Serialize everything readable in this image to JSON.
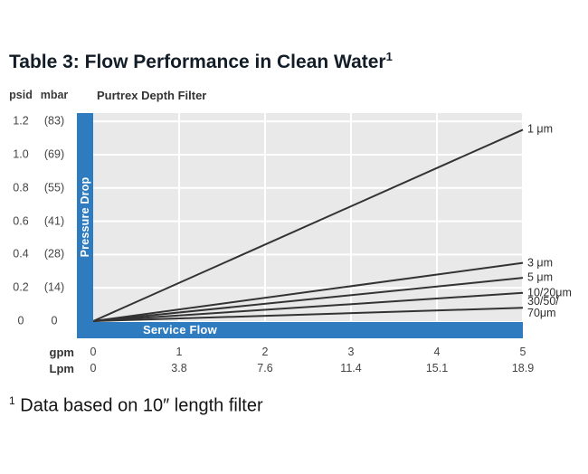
{
  "page": {
    "title": "Table 3: Flow Performance in Clean Water",
    "title_superscript": "1",
    "footnote_superscript": "1",
    "footnote": "Data based on 10″ length filter"
  },
  "chart": {
    "colors": {
      "accent_blue": "#2e7bbf",
      "plot_bg": "#e9e9e9",
      "line": "#333333"
    }
  },
  "chart_data": {
    "type": "line",
    "title": "Purtrex Depth Filter",
    "ylabel": "Pressure Drop",
    "xlabel": "Service Flow",
    "y_unit_primary": "psid",
    "y_unit_secondary": "mbar",
    "x_unit_primary": "gpm",
    "x_unit_secondary": "Lpm",
    "xlim": [
      0,
      5
    ],
    "ylim": [
      0,
      1.25
    ],
    "grid": true,
    "legend_position": "right",
    "x_ticks_gpm": [
      0,
      1,
      2,
      3,
      4,
      5
    ],
    "x_ticks_lpm": [
      "0",
      "3.8",
      "7.6",
      "11.4",
      "15.1",
      "18.9"
    ],
    "y_ticks_psid": [
      "1.2",
      "1.0",
      "0.8",
      "0.6",
      "0.4",
      "0.2",
      "0"
    ],
    "y_ticks_mbar": [
      "(83)",
      "(69)",
      "(55)",
      "(41)",
      "(28)",
      "(14)",
      "0"
    ],
    "series": [
      {
        "name": "1 μm",
        "label_lines": [
          "1 μm"
        ],
        "x": [
          0,
          5
        ],
        "y": [
          0,
          1.15
        ]
      },
      {
        "name": "3 μm",
        "label_lines": [
          "3 μm"
        ],
        "x": [
          0,
          5
        ],
        "y": [
          0,
          0.35
        ]
      },
      {
        "name": "5 μm",
        "label_lines": [
          "5 μm"
        ],
        "x": [
          0,
          5
        ],
        "y": [
          0,
          0.26
        ]
      },
      {
        "name": "10/20 μm",
        "label_lines": [
          "10/20μm"
        ],
        "x": [
          0,
          5
        ],
        "y": [
          0,
          0.17
        ]
      },
      {
        "name": "30/50/70 μm",
        "label_lines": [
          "30/50/",
          "70μm"
        ],
        "x": [
          0,
          5
        ],
        "y": [
          0,
          0.08
        ]
      }
    ]
  }
}
